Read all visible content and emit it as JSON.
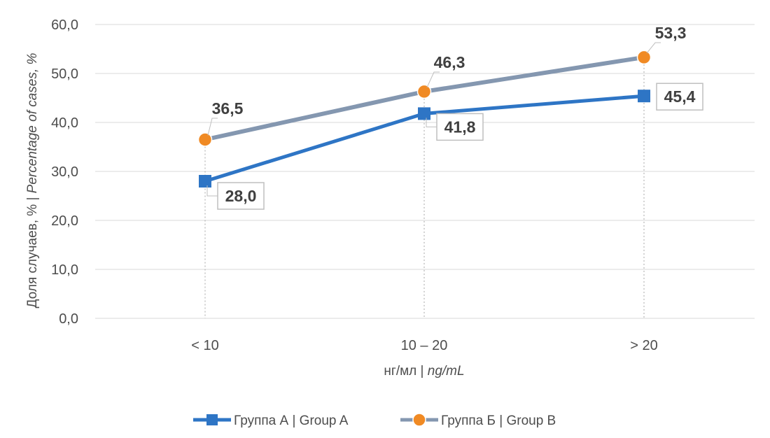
{
  "chart_data": {
    "type": "line",
    "categories": [
      "< 10",
      "10 – 20",
      "> 20"
    ],
    "series": [
      {
        "name": "Группа А | Group A",
        "values": [
          28.0,
          41.8,
          45.4
        ],
        "labels": [
          "28,0",
          "41,8",
          "45,4"
        ],
        "color": "#2e75c5",
        "marker": "square"
      },
      {
        "name": "Группа Б | Group B",
        "values": [
          36.5,
          46.3,
          53.3
        ],
        "labels": [
          "36,5",
          "46,3",
          "53,3"
        ],
        "color": "#8497b0",
        "marker_color": "#f08a24",
        "marker": "circle"
      }
    ],
    "ylim": [
      0,
      60
    ],
    "yticks": [
      0,
      10,
      20,
      30,
      40,
      50,
      60
    ],
    "ytick_labels": [
      "0,0",
      "10,0",
      "20,0",
      "30,0",
      "40,0",
      "50,0",
      "60,0"
    ],
    "ylabel_plain": "Доля  случаев, % | ",
    "ylabel_italic": "Percentage of cases, %",
    "xlabel_plain": "нг/мл | ",
    "xlabel_italic": "ng/mL",
    "grid": true,
    "legend": "bottom"
  }
}
